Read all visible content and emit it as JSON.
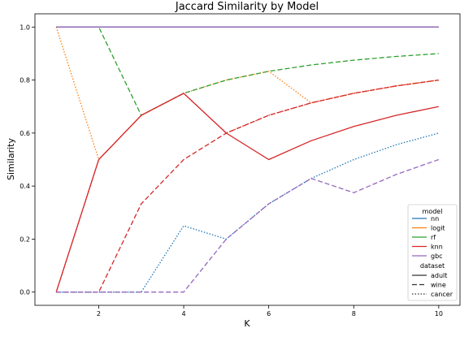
{
  "chart_data": {
    "type": "line",
    "title": "Jaccard Similarity by Model",
    "xlabel": "K",
    "ylabel": "Similarity",
    "xlim": [
      0.5,
      10.5
    ],
    "ylim": [
      -0.05,
      1.05
    ],
    "x": [
      1,
      2,
      3,
      4,
      5,
      6,
      7,
      8,
      9,
      10
    ],
    "xticks": [
      "2",
      "4",
      "6",
      "8",
      "10"
    ],
    "xtick_values": [
      2,
      4,
      6,
      8,
      10
    ],
    "yticks": [
      "0.0",
      "0.2",
      "0.4",
      "0.6",
      "0.8",
      "1.0"
    ],
    "ytick_values": [
      0.0,
      0.2,
      0.4,
      0.6,
      0.8,
      1.0
    ],
    "grid": false,
    "legend": {
      "placement": "bottom-right",
      "hue_title": "model",
      "style_title": "dataset",
      "models": [
        {
          "name": "nn",
          "color": "#1f77b4"
        },
        {
          "name": "logit",
          "color": "#ff7f0e"
        },
        {
          "name": "rf",
          "color": "#2ca02c"
        },
        {
          "name": "knn",
          "color": "#d62728"
        },
        {
          "name": "gbc",
          "color": "#9467bd"
        }
      ],
      "datasets": [
        {
          "name": "adult",
          "dash": "solid"
        },
        {
          "name": "wine",
          "dash": "dashed"
        },
        {
          "name": "cancer",
          "dash": "dotted"
        }
      ]
    },
    "series": [
      {
        "model": "nn",
        "dataset": "adult",
        "values": [
          1,
          1,
          1,
          1,
          1,
          1,
          1,
          1,
          1,
          1
        ]
      },
      {
        "model": "nn",
        "dataset": "wine",
        "values": [
          1,
          1,
          1,
          1,
          1,
          1,
          1,
          1,
          1,
          1
        ]
      },
      {
        "model": "nn",
        "dataset": "cancer",
        "values": [
          0,
          0,
          0,
          0.25,
          0.2,
          0.333,
          0.429,
          0.5,
          0.556,
          0.6
        ]
      },
      {
        "model": "logit",
        "dataset": "adult",
        "values": [
          1,
          1,
          1,
          1,
          1,
          1,
          1,
          1,
          1,
          1
        ]
      },
      {
        "model": "logit",
        "dataset": "wine",
        "values": [
          1,
          1,
          1,
          1,
          1,
          1,
          1,
          1,
          1,
          1
        ]
      },
      {
        "model": "logit",
        "dataset": "cancer",
        "values": [
          1,
          0.5,
          0.667,
          0.75,
          0.8,
          0.833,
          0.714,
          0.75,
          0.778,
          0.8
        ]
      },
      {
        "model": "rf",
        "dataset": "adult",
        "values": [
          1,
          1,
          1,
          1,
          1,
          1,
          1,
          1,
          1,
          1
        ]
      },
      {
        "model": "rf",
        "dataset": "wine",
        "values": [
          1,
          1,
          0.667,
          0.75,
          0.8,
          0.833,
          0.857,
          0.875,
          0.889,
          0.9
        ]
      },
      {
        "model": "rf",
        "dataset": "cancer",
        "values": [
          1,
          1,
          1,
          1,
          1,
          1,
          1,
          1,
          1,
          1
        ]
      },
      {
        "model": "knn",
        "dataset": "adult",
        "values": [
          0,
          0.5,
          0.667,
          0.75,
          0.6,
          0.5,
          0.571,
          0.625,
          0.667,
          0.7
        ]
      },
      {
        "model": "knn",
        "dataset": "wine",
        "values": [
          0,
          0,
          0.333,
          0.5,
          0.6,
          0.667,
          0.714,
          0.75,
          0.778,
          0.8
        ]
      },
      {
        "model": "knn",
        "dataset": "cancer",
        "values": [
          0,
          0.5,
          0.667,
          0.75,
          0.6,
          0.667,
          0.714,
          0.75,
          0.778,
          0.8
        ]
      },
      {
        "model": "gbc",
        "dataset": "adult",
        "values": [
          1,
          1,
          1,
          1,
          1,
          1,
          1,
          1,
          1,
          1
        ]
      },
      {
        "model": "gbc",
        "dataset": "wine",
        "values": [
          0,
          0,
          0,
          0,
          0.2,
          0.333,
          0.429,
          0.375,
          0.444,
          0.5
        ]
      },
      {
        "model": "gbc",
        "dataset": "cancer",
        "values": [
          1,
          1,
          1,
          1,
          1,
          1,
          1,
          1,
          1,
          1
        ]
      }
    ]
  }
}
